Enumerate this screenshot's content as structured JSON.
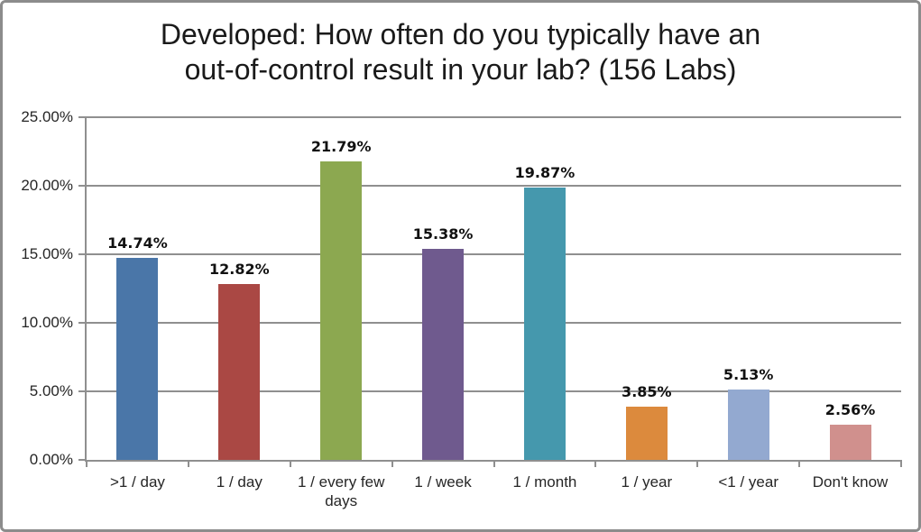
{
  "title": {
    "lines": [
      "Developed: How often do you typically have an",
      "out-of-control result in your lab? (156 Labs)"
    ]
  },
  "chart_data": {
    "type": "bar",
    "title": "Developed: How often do you typically have an out-of-control result in your lab? (156 Labs)",
    "categories": [
      ">1 / day",
      "1 / day",
      "1 / every few days",
      "1 / week",
      "1 / month",
      "1 / year",
      "<1 / year",
      "Don't know"
    ],
    "values": [
      14.74,
      12.82,
      21.79,
      15.38,
      19.87,
      3.85,
      5.13,
      2.56
    ],
    "data_labels": [
      "14.74%",
      "12.82%",
      "21.79%",
      "15.38%",
      "19.87%",
      "3.85%",
      "5.13%",
      "2.56%"
    ],
    "bar_colors": [
      "#4A76A8",
      "#AA4844",
      "#8CA850",
      "#6F5A8E",
      "#4598AD",
      "#DC8A3D",
      "#93A9D0",
      "#D0908D"
    ],
    "xlabel": "",
    "ylabel": "",
    "ylim": [
      0,
      25
    ],
    "ytick_values": [
      0,
      5,
      10,
      15,
      20,
      25
    ],
    "ytick_labels": [
      "0.00%",
      "5.00%",
      "10.00%",
      "15.00%",
      "20.00%",
      "25.00%"
    ],
    "grid": true,
    "legend_position": "none"
  },
  "colors": {
    "axis": "#8f8f8f",
    "gridline": "#8f8f8f",
    "frame_border": "#8c8c8c",
    "label_text": "#262626",
    "data_label_text": "#111111",
    "background": "#ffffff"
  }
}
